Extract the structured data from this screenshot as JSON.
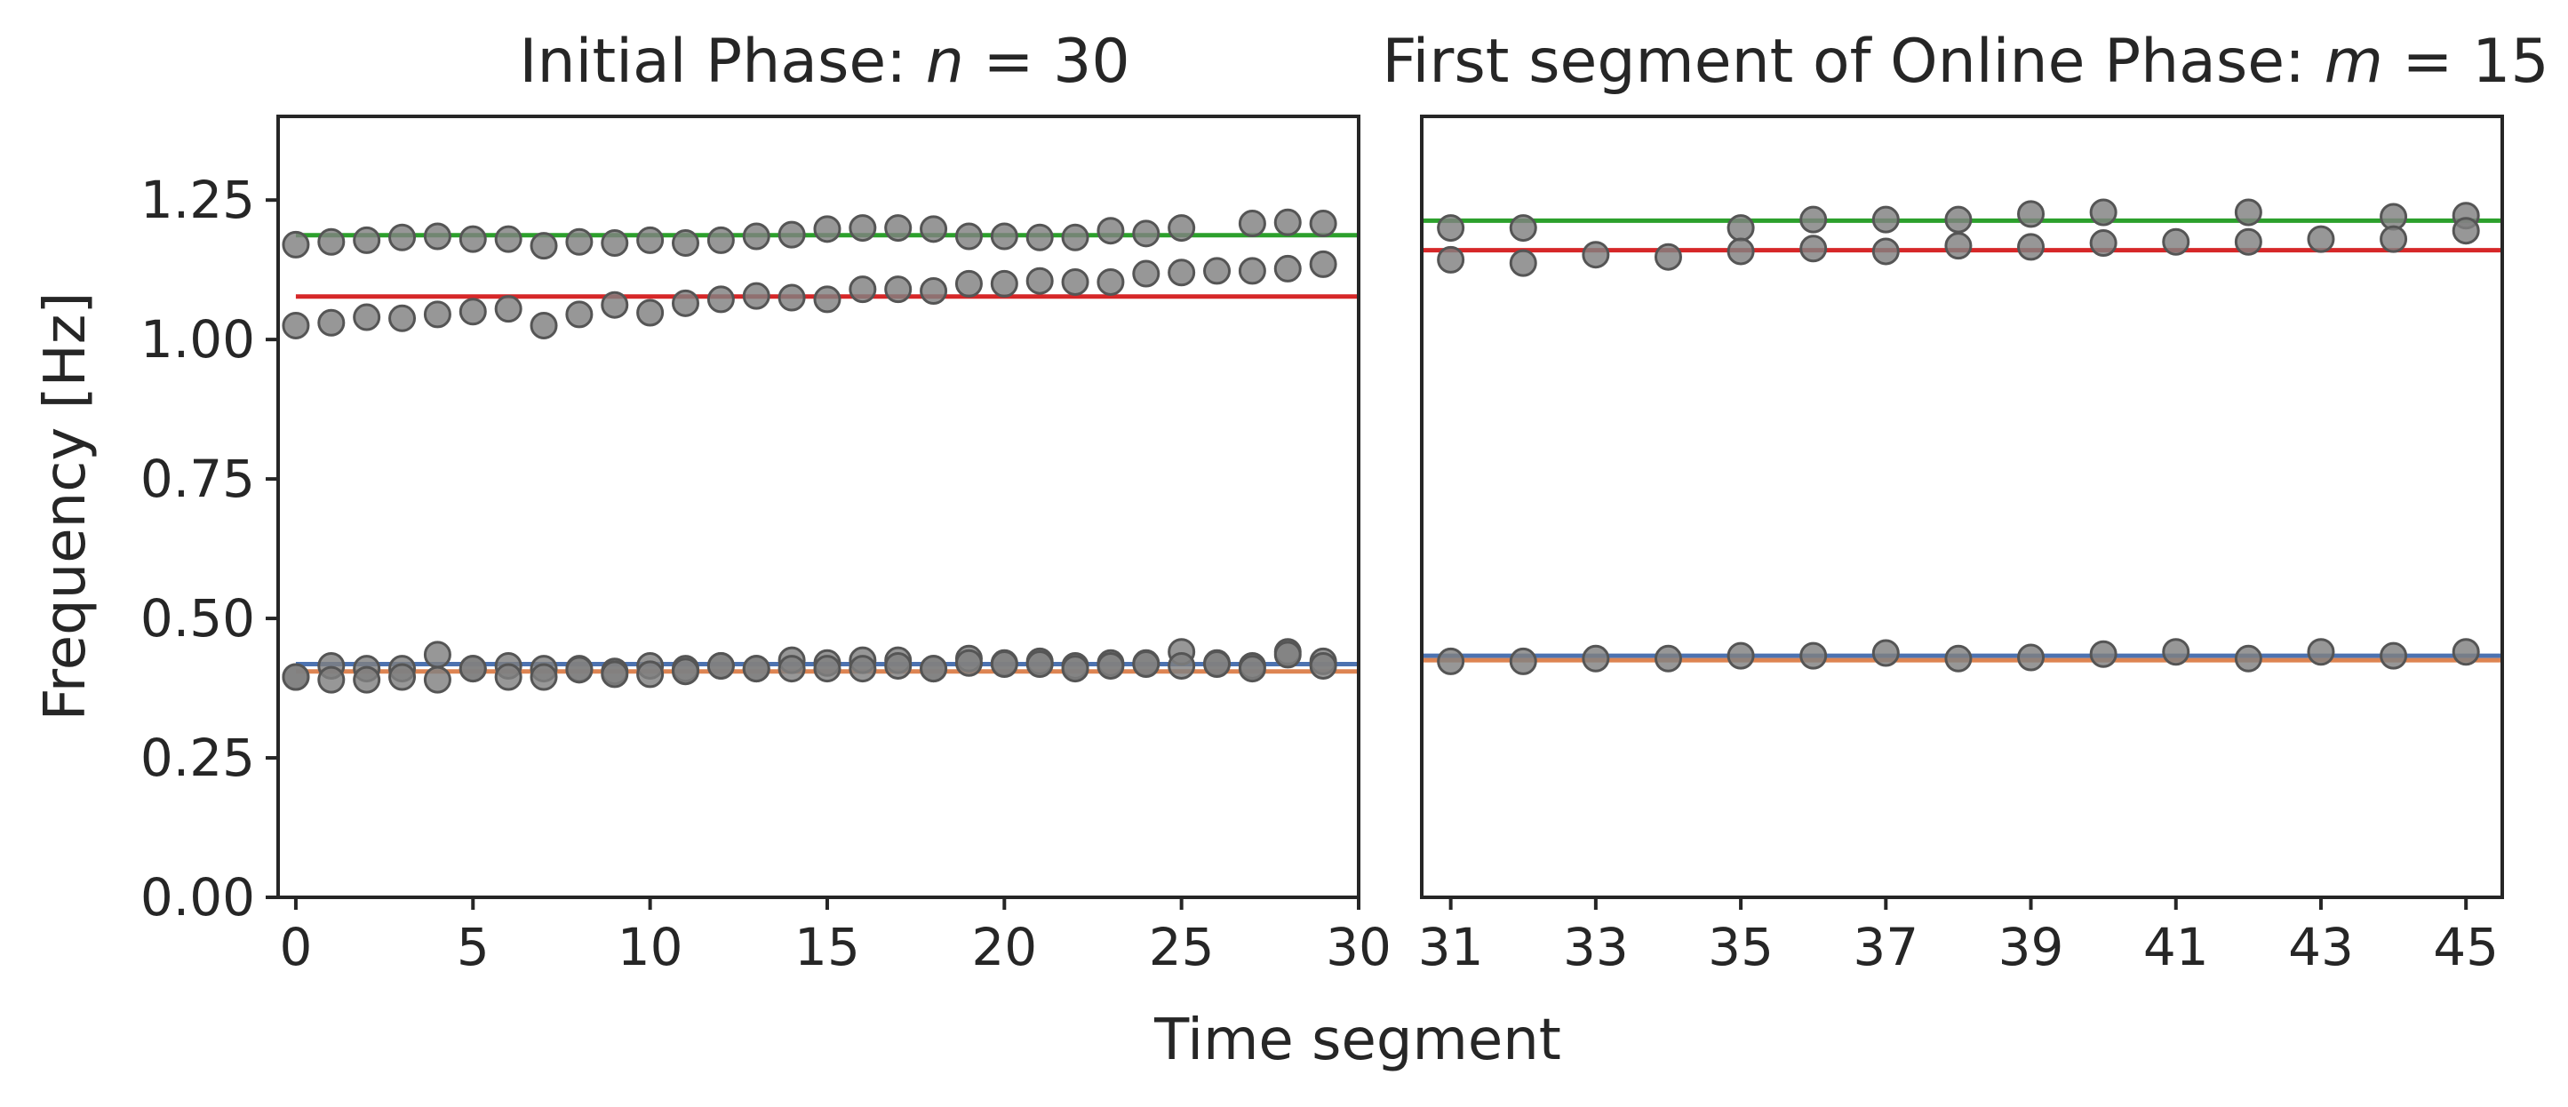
{
  "figure": {
    "xlabel": "Time segment",
    "ylabel": "Frequency [Hz]"
  },
  "colors": {
    "points": "#808080",
    "green": "#2ca02c",
    "red": "#d62728",
    "blue": "#4c72b0",
    "orange": "#dd8452",
    "axes": "#262626"
  },
  "chart_data": [
    {
      "type": "scatter",
      "title_prefix": "Initial Phase: ",
      "title_var": "n",
      "title_rest": " = 30",
      "xlim": [
        -0.5,
        30
      ],
      "ylim": [
        0,
        1.4
      ],
      "xticks": [
        0,
        5,
        10,
        15,
        20,
        25,
        30
      ],
      "yticks": [
        0.0,
        0.25,
        0.5,
        0.75,
        1.0,
        1.25
      ],
      "ytick_labels": [
        "0.00",
        "0.25",
        "0.50",
        "0.75",
        "1.00",
        "1.25"
      ],
      "lines": [
        {
          "color_key": "green",
          "x": [
            0,
            30
          ],
          "y": [
            1.187,
            1.187
          ]
        },
        {
          "color_key": "red",
          "x": [
            0,
            30
          ],
          "y": [
            1.077,
            1.077
          ]
        },
        {
          "color_key": "blue",
          "x": [
            0,
            30
          ],
          "y": [
            0.418,
            0.418
          ]
        },
        {
          "color_key": "orange",
          "x": [
            0,
            30
          ],
          "y": [
            0.405,
            0.405
          ]
        }
      ],
      "points": {
        "x": [
          0,
          1,
          2,
          3,
          4,
          5,
          6,
          7,
          8,
          9,
          10,
          11,
          12,
          13,
          14,
          15,
          16,
          17,
          18,
          19,
          20,
          21,
          22,
          23,
          24,
          25,
          27,
          28,
          29,
          0,
          1,
          2,
          3,
          4,
          5,
          6,
          7,
          8,
          9,
          10,
          11,
          12,
          13,
          14,
          15,
          16,
          17,
          18,
          19,
          20,
          21,
          22,
          23,
          24,
          25,
          26,
          27,
          28,
          29,
          0,
          1,
          2,
          3,
          4,
          5,
          6,
          7,
          8,
          9,
          10,
          11,
          12,
          13,
          14,
          15,
          16,
          17,
          18,
          19,
          20,
          21,
          22,
          23,
          24,
          25,
          26,
          27,
          28,
          29,
          0,
          1,
          2,
          3,
          4,
          5,
          6,
          7,
          8,
          9,
          10,
          11,
          12,
          13,
          14,
          15,
          16,
          17,
          18,
          19,
          20,
          21,
          22,
          23,
          24,
          25,
          26,
          27,
          28,
          29
        ],
        "y": [
          1.17,
          1.175,
          1.178,
          1.183,
          1.185,
          1.18,
          1.18,
          1.168,
          1.175,
          1.173,
          1.178,
          1.173,
          1.178,
          1.185,
          1.188,
          1.198,
          1.2,
          1.2,
          1.198,
          1.185,
          1.185,
          1.183,
          1.183,
          1.195,
          1.19,
          1.2,
          1.208,
          1.21,
          1.208,
          1.025,
          1.03,
          1.04,
          1.038,
          1.045,
          1.05,
          1.055,
          1.025,
          1.045,
          1.062,
          1.048,
          1.065,
          1.072,
          1.078,
          1.075,
          1.072,
          1.09,
          1.09,
          1.087,
          1.1,
          1.1,
          1.105,
          1.103,
          1.103,
          1.118,
          1.12,
          1.123,
          1.123,
          1.127,
          1.135,
          0.395,
          0.415,
          0.41,
          0.41,
          0.435,
          0.41,
          0.415,
          0.41,
          0.41,
          0.405,
          0.415,
          0.41,
          0.415,
          0.41,
          0.425,
          0.42,
          0.425,
          0.425,
          0.41,
          0.428,
          0.42,
          0.423,
          0.415,
          0.42,
          0.42,
          0.44,
          0.42,
          0.415,
          0.44,
          0.423,
          0.395,
          0.39,
          0.39,
          0.395,
          0.39,
          0.41,
          0.395,
          0.395,
          0.408,
          0.4,
          0.4,
          0.405,
          0.415,
          0.41,
          0.41,
          0.41,
          0.41,
          0.415,
          0.41,
          0.42,
          0.418,
          0.418,
          0.41,
          0.415,
          0.418,
          0.415,
          0.418,
          0.41,
          0.435,
          0.415
        ]
      }
    },
    {
      "type": "scatter",
      "title_prefix": "First segment of Online Phase: ",
      "title_var": "m",
      "title_rest": " = 15",
      "xlim": [
        30.6,
        45.5
      ],
      "ylim": [
        0,
        1.4
      ],
      "xticks": [
        31,
        33,
        35,
        37,
        39,
        41,
        43,
        45
      ],
      "lines": [
        {
          "color_key": "green",
          "x": [
            30.6,
            45.5
          ],
          "y": [
            1.213,
            1.213
          ]
        },
        {
          "color_key": "red",
          "x": [
            30.6,
            45.5
          ],
          "y": [
            1.16,
            1.16
          ]
        },
        {
          "color_key": "blue",
          "x": [
            30.6,
            45.5
          ],
          "y": [
            0.433,
            0.433
          ]
        },
        {
          "color_key": "orange",
          "x": [
            30.6,
            45.5
          ],
          "y": [
            0.425,
            0.425
          ]
        }
      ],
      "points": {
        "x": [
          31,
          32,
          35,
          36,
          37,
          38,
          39,
          40,
          42,
          44,
          45,
          31,
          32,
          33,
          34,
          35,
          36,
          37,
          38,
          39,
          40,
          41,
          42,
          43,
          44,
          45,
          31,
          32,
          33,
          34,
          35,
          36,
          37,
          38,
          39,
          40,
          41,
          42,
          43,
          44,
          45
        ],
        "y": [
          1.2,
          1.2,
          1.2,
          1.215,
          1.215,
          1.215,
          1.225,
          1.228,
          1.228,
          1.22,
          1.222,
          1.143,
          1.137,
          1.152,
          1.148,
          1.158,
          1.163,
          1.158,
          1.168,
          1.166,
          1.173,
          1.175,
          1.175,
          1.18,
          1.18,
          1.195,
          0.423,
          0.423,
          0.428,
          0.428,
          0.433,
          0.433,
          0.438,
          0.428,
          0.43,
          0.436,
          0.44,
          0.428,
          0.44,
          0.433,
          0.44
        ]
      }
    }
  ]
}
